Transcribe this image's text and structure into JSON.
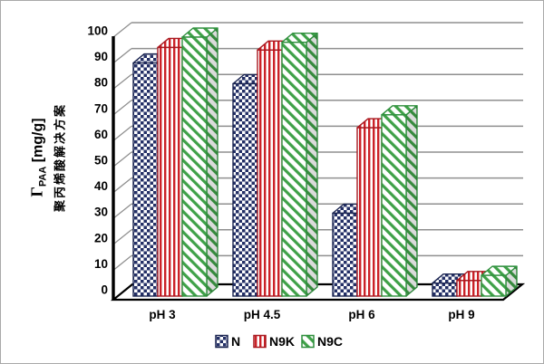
{
  "figure": {
    "y_axis_title_gamma": "Γ",
    "y_axis_title_sub": "PAA",
    "y_axis_title_units": " [mg/g]",
    "y_axis_title_cn": "聚丙烯酸解决方案"
  },
  "chart_data": {
    "type": "bar",
    "projection": "3d",
    "title": "",
    "xlabel": "",
    "ylabel": "Γ_PAA [mg/g] 聚丙烯酸解决方案",
    "categories": [
      "pH 3",
      "pH 4.5",
      "pH 6",
      "pH 9"
    ],
    "series": [
      {
        "name": "N",
        "pattern": "checkerboard",
        "color": "#232f66",
        "edge": "#1a2450",
        "values": [
          90,
          82,
          32,
          5
        ]
      },
      {
        "name": "N9K",
        "pattern": "vertical-stripes",
        "color": "#cb2127",
        "edge": "#a8181f",
        "values": [
          96,
          95,
          65,
          6
        ]
      },
      {
        "name": "N9C",
        "pattern": "diagonal-stripes",
        "color": "#3fa148",
        "edge": "#2f8f3d",
        "values": [
          100,
          98,
          70,
          8
        ]
      }
    ],
    "ylim": [
      0,
      100
    ],
    "ytick_step": 10,
    "ytick_labels": [
      "0",
      "10",
      "20",
      "30",
      "40",
      "50",
      "60",
      "70",
      "80",
      "90",
      "100"
    ],
    "grid": true,
    "gridline_color": "#8f8f8f",
    "axis_color": "#000000",
    "background_color": "#ffffff",
    "legend_position": "bottom"
  }
}
